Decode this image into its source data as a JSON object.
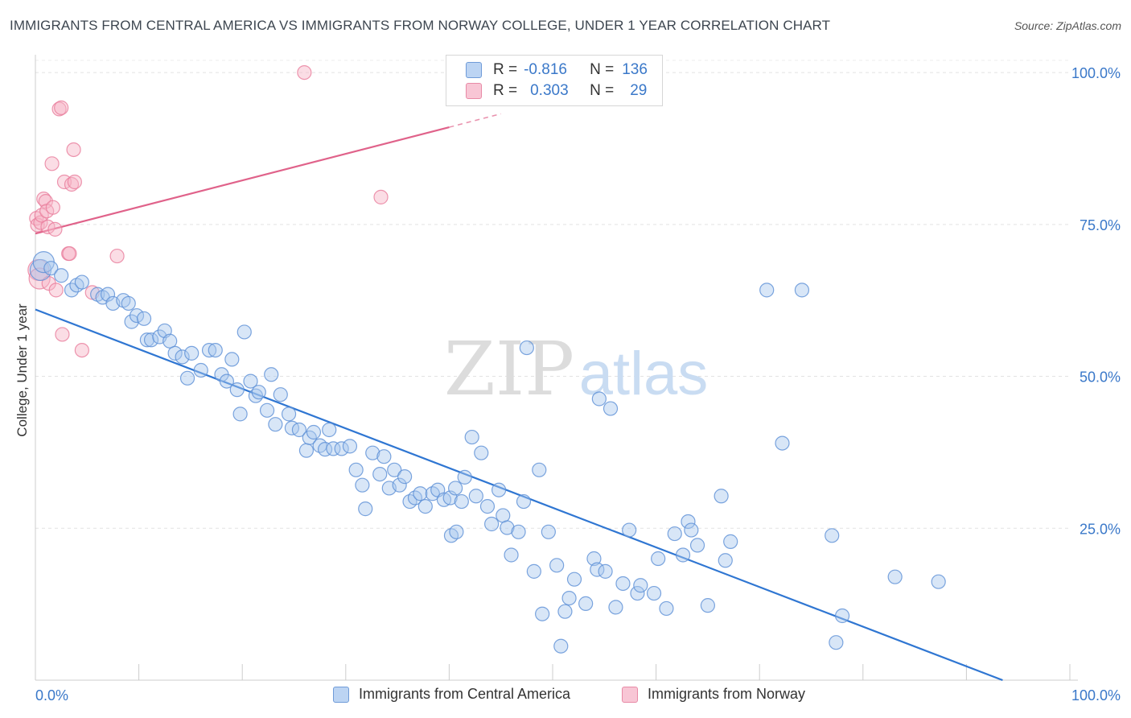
{
  "title": "IMMIGRANTS FROM CENTRAL AMERICA VS IMMIGRANTS FROM NORWAY COLLEGE, UNDER 1 YEAR CORRELATION CHART",
  "source": "Source: ZipAtlas.com",
  "watermark": {
    "zip": "ZIP",
    "atlas": "atlas"
  },
  "legend_stats": {
    "r_label": "R =",
    "n_label": "N =",
    "rows": [
      {
        "r": "-0.816",
        "n": "136"
      },
      {
        "r": "0.303",
        "n": "29"
      }
    ]
  },
  "bottom_legend": [
    "Immigrants from Central America",
    "Immigrants from Norway"
  ],
  "colors": {
    "blue_fill": "#a9c8ee",
    "blue_stroke": "#5b8fd6",
    "blue_line": "#2f76d2",
    "pink_fill": "#f6b3c6",
    "pink_stroke": "#e97c9b",
    "pink_line": "#e0628a",
    "tick_label": "#3a78c9"
  },
  "chart_data": {
    "type": "scatter",
    "title": "IMMIGRANTS FROM CENTRAL AMERICA VS IMMIGRANTS FROM NORWAY COLLEGE, UNDER 1 YEAR CORRELATION CHART",
    "xlabel": "",
    "ylabel": "College, Under 1 year",
    "xlim": [
      0,
      100
    ],
    "ylim": [
      0,
      102
    ],
    "x_tick_labels": [
      "0.0%",
      "100.0%"
    ],
    "y_ticks": [
      25,
      50,
      75,
      100
    ],
    "y_tick_labels": [
      "25.0%",
      "50.0%",
      "75.0%",
      "100.0%"
    ],
    "grid": true,
    "legend_position": "top-center",
    "series": [
      {
        "name": "Immigrants from Central America",
        "color": "#a9c8ee",
        "r": -0.816,
        "n": 136,
        "trend": {
          "x": [
            0,
            93.5
          ],
          "y": [
            61,
            0
          ]
        },
        "points": [
          [
            0.5,
            67.5
          ],
          [
            0.8,
            68.8
          ],
          [
            1.5,
            67.8
          ],
          [
            2.5,
            66.6
          ],
          [
            3.5,
            64.2
          ],
          [
            4,
            65
          ],
          [
            4.5,
            65.5
          ],
          [
            6,
            63.5
          ],
          [
            6.5,
            63
          ],
          [
            7,
            63.5
          ],
          [
            7.5,
            62
          ],
          [
            8.5,
            62.5
          ],
          [
            9,
            62
          ],
          [
            9.3,
            59
          ],
          [
            9.8,
            60
          ],
          [
            10.5,
            59.5
          ],
          [
            10.8,
            56
          ],
          [
            11.2,
            56
          ],
          [
            12,
            56.5
          ],
          [
            12.5,
            57.5
          ],
          [
            13,
            55.8
          ],
          [
            13.5,
            53.8
          ],
          [
            14.2,
            53.2
          ],
          [
            14.7,
            49.7
          ],
          [
            15.1,
            53.8
          ],
          [
            16,
            51
          ],
          [
            16.8,
            54.3
          ],
          [
            17.4,
            54.3
          ],
          [
            18,
            50.3
          ],
          [
            18.5,
            49.2
          ],
          [
            19,
            52.8
          ],
          [
            19.5,
            47.8
          ],
          [
            19.8,
            43.8
          ],
          [
            20.2,
            57.3
          ],
          [
            20.8,
            49.2
          ],
          [
            21.3,
            46.8
          ],
          [
            21.6,
            47.4
          ],
          [
            22.4,
            44.4
          ],
          [
            22.8,
            50.3
          ],
          [
            23.2,
            42.1
          ],
          [
            23.7,
            47
          ],
          [
            24.5,
            43.8
          ],
          [
            24.8,
            41.5
          ],
          [
            25.5,
            41.2
          ],
          [
            26.2,
            37.8
          ],
          [
            26.5,
            39.9
          ],
          [
            26.9,
            40.8
          ],
          [
            27.5,
            38.6
          ],
          [
            28,
            38
          ],
          [
            28.4,
            41.2
          ],
          [
            28.8,
            38.1
          ],
          [
            29.6,
            38.1
          ],
          [
            30.4,
            38.5
          ],
          [
            31,
            34.6
          ],
          [
            31.6,
            32.1
          ],
          [
            31.9,
            28.2
          ],
          [
            32.6,
            37.4
          ],
          [
            33.3,
            33.9
          ],
          [
            33.7,
            36.8
          ],
          [
            34.2,
            31.6
          ],
          [
            34.7,
            34.6
          ],
          [
            35.2,
            32.1
          ],
          [
            35.7,
            33.5
          ],
          [
            36.2,
            29.4
          ],
          [
            36.7,
            30
          ],
          [
            37.2,
            30.7
          ],
          [
            37.7,
            28.6
          ],
          [
            38.4,
            30.7
          ],
          [
            38.9,
            31.3
          ],
          [
            39.5,
            29.7
          ],
          [
            40.1,
            30
          ],
          [
            40.6,
            31.6
          ],
          [
            40.2,
            23.8
          ],
          [
            40.7,
            24.4
          ],
          [
            41.2,
            29.4
          ],
          [
            41.5,
            33.4
          ],
          [
            42.2,
            40
          ],
          [
            42.6,
            30.3
          ],
          [
            43.1,
            37.4
          ],
          [
            43.7,
            28.6
          ],
          [
            44.1,
            25.7
          ],
          [
            44.8,
            31.3
          ],
          [
            45.2,
            27.1
          ],
          [
            45.6,
            25.1
          ],
          [
            46,
            20.6
          ],
          [
            46.7,
            24.4
          ],
          [
            47.2,
            29.4
          ],
          [
            47.5,
            54.7
          ],
          [
            48.2,
            17.9
          ],
          [
            48.7,
            34.6
          ],
          [
            49,
            10.9
          ],
          [
            49.6,
            24.4
          ],
          [
            50.4,
            18.9
          ],
          [
            50.8,
            5.6
          ],
          [
            51.2,
            11.3
          ],
          [
            51.6,
            13.5
          ],
          [
            52.1,
            16.6
          ],
          [
            53.2,
            12.6
          ],
          [
            54,
            20
          ],
          [
            54.3,
            18.2
          ],
          [
            54.5,
            46.3
          ],
          [
            55.1,
            17.9
          ],
          [
            55.6,
            44.7
          ],
          [
            56.1,
            12
          ],
          [
            56.8,
            15.9
          ],
          [
            57.4,
            24.7
          ],
          [
            58.2,
            14.3
          ],
          [
            58.5,
            15.6
          ],
          [
            59.8,
            14.3
          ],
          [
            60.2,
            20
          ],
          [
            61,
            11.8
          ],
          [
            61.8,
            24.1
          ],
          [
            62.6,
            20.6
          ],
          [
            63.1,
            26.1
          ],
          [
            63.4,
            24.7
          ],
          [
            64,
            22.2
          ],
          [
            65,
            12.3
          ],
          [
            66.3,
            30.3
          ],
          [
            66.7,
            19.7
          ],
          [
            67.2,
            22.8
          ],
          [
            70.7,
            64.2
          ],
          [
            72.2,
            39
          ],
          [
            74.1,
            64.2
          ],
          [
            77,
            23.8
          ],
          [
            77.4,
            6.2
          ],
          [
            78,
            10.6
          ],
          [
            83.1,
            17
          ],
          [
            87.3,
            16.2
          ]
        ]
      },
      {
        "name": "Immigrants from Norway",
        "color": "#f6b3c6",
        "r": 0.303,
        "n": 29,
        "trend": {
          "x": [
            0,
            40
          ],
          "y": [
            73.5,
            91
          ]
        },
        "trend_dashed": {
          "x": [
            40,
            45
          ],
          "y": [
            91,
            93.2
          ]
        },
        "points": [
          [
            0.1,
            76
          ],
          [
            0.2,
            74.9
          ],
          [
            0.3,
            67.5
          ],
          [
            0.4,
            66.1
          ],
          [
            0.5,
            75.3
          ],
          [
            0.6,
            76.5
          ],
          [
            0.8,
            79.2
          ],
          [
            1,
            78.8
          ],
          [
            1.1,
            77.2
          ],
          [
            1.2,
            74.6
          ],
          [
            1.3,
            65.3
          ],
          [
            1.6,
            85
          ],
          [
            1.7,
            77.8
          ],
          [
            1.9,
            74.2
          ],
          [
            2,
            64.2
          ],
          [
            2.3,
            94
          ],
          [
            2.5,
            94.2
          ],
          [
            2.6,
            56.9
          ],
          [
            2.8,
            82
          ],
          [
            3.2,
            70.2
          ],
          [
            3.3,
            70.2
          ],
          [
            3.5,
            81.6
          ],
          [
            3.7,
            87.3
          ],
          [
            3.8,
            82
          ],
          [
            4.5,
            54.3
          ],
          [
            5.5,
            63.8
          ],
          [
            7.9,
            69.8
          ],
          [
            26,
            100
          ],
          [
            33.4,
            79.5
          ]
        ]
      }
    ]
  }
}
